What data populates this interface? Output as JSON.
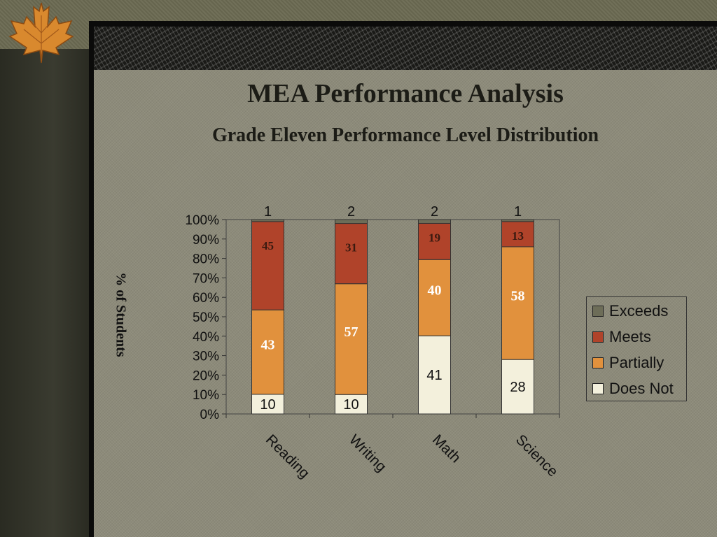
{
  "title": "MEA Performance Analysis",
  "subtitle": "Grade Eleven Performance Level Distribution",
  "colors": {
    "Exceeds": "#6d6d58",
    "Meets": "#b0432a",
    "Partially": "#e1913d",
    "Does Not": "#f3f0dc"
  },
  "chart_data": {
    "type": "bar",
    "stacked": true,
    "categories": [
      "Reading",
      "Writing",
      "Math",
      "Science"
    ],
    "series": [
      {
        "name": "Does Not",
        "values": [
          10,
          10,
          41,
          28
        ]
      },
      {
        "name": "Partially",
        "values": [
          43,
          57,
          40,
          58
        ]
      },
      {
        "name": "Meets",
        "values": [
          45,
          31,
          19,
          13
        ]
      },
      {
        "name": "Exceeds",
        "values": [
          1,
          2,
          2,
          1
        ]
      }
    ],
    "ylabel": "% of Students",
    "ylim": [
      0,
      100
    ],
    "yticks": [
      "0%",
      "10%",
      "20%",
      "30%",
      "40%",
      "50%",
      "60%",
      "70%",
      "80%",
      "90%",
      "100%"
    ],
    "legend_position": "right"
  }
}
